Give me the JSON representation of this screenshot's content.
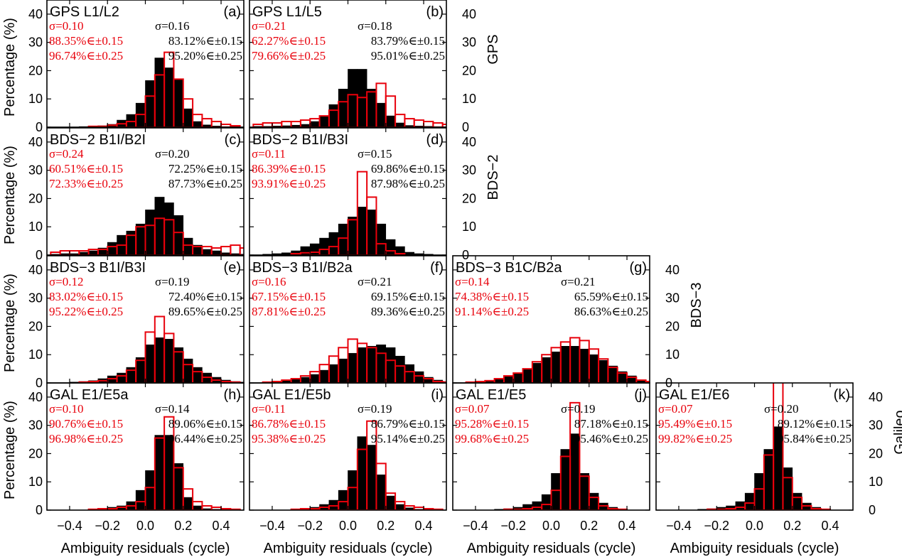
{
  "figure": {
    "x_axis_label": "Ambiguity residuals (cycle)",
    "y_axis_label": "Percentage (%)",
    "row_labels": [
      "GPS",
      "BDS−2",
      "BDS−3",
      "Galileo"
    ],
    "colors": {
      "filled_bars": "#000000",
      "outline_bars": "#e8000b",
      "frame": "#000000"
    }
  },
  "chart_data": [
    {
      "type": "bar",
      "id": "a",
      "row": 0,
      "col": 0,
      "panel_label": "(a)",
      "title": "GPS L1/L2",
      "xlim": [
        -0.52,
        0.52
      ],
      "ylim": [
        0,
        45
      ],
      "yticks": [
        0,
        10,
        20,
        30,
        40
      ],
      "xticks": [
        -0.4,
        -0.2,
        0.0,
        0.2,
        0.4
      ],
      "bin_edges_start": -0.5,
      "bin_width": 0.05,
      "series": [
        {
          "name": "black",
          "style": "filled",
          "values": [
            0,
            0,
            0,
            0.2,
            0.3,
            0.5,
            1,
            2.5,
            4.5,
            8.5,
            16.5,
            24.5,
            21,
            17,
            6.5,
            2,
            0.8,
            0.4,
            0.2,
            0,
            0
          ]
        },
        {
          "name": "red",
          "style": "outline",
          "values": [
            0,
            0,
            0,
            0,
            0.3,
            0.3,
            0.7,
            1.2,
            2,
            4.5,
            11,
            18.5,
            26.5,
            17,
            10,
            4.5,
            3,
            2,
            1,
            0.5,
            0
          ]
        }
      ],
      "stats_red": {
        "sigma": "σ=0.10",
        "p15": "88.35%∈±0.15",
        "p25": "96.74%∈±0.25"
      },
      "stats_black": {
        "sigma": "σ=0.16",
        "p15": "83.12%∈±0.15",
        "p25": "95.20%∈±0.25"
      }
    },
    {
      "type": "bar",
      "id": "b",
      "row": 0,
      "col": 1,
      "panel_label": "(b)",
      "title": "GPS L1/L5",
      "xlim": [
        -0.52,
        0.52
      ],
      "ylim": [
        0,
        45
      ],
      "yticks": [
        0,
        10,
        20,
        30,
        40
      ],
      "xticks": [
        -0.4,
        -0.2,
        0.0,
        0.2,
        0.4
      ],
      "bin_edges_start": -0.5,
      "bin_width": 0.05,
      "series": [
        {
          "name": "black",
          "style": "filled",
          "values": [
            0.3,
            0.3,
            0.4,
            0.5,
            0.7,
            1,
            2,
            4,
            8,
            13.5,
            20.5,
            20.5,
            13.5,
            8.5,
            4,
            1.5,
            0.6,
            0.4,
            0.3,
            0.2,
            0.1
          ]
        },
        {
          "name": "red",
          "style": "outline",
          "values": [
            1,
            1.5,
            1.5,
            2,
            2,
            2.5,
            3,
            4,
            6,
            9,
            11.5,
            10.5,
            12.5,
            15.5,
            11,
            4.5,
            3,
            2.5,
            2,
            1.5,
            1
          ]
        }
      ],
      "stats_red": {
        "sigma": "σ=0.21",
        "p15": "62.27%∈±0.15",
        "p25": "79.66%∈±0.25"
      },
      "stats_black": {
        "sigma": "σ=0.18",
        "p15": "83.79%∈±0.15",
        "p25": "95.01%∈±0.25"
      }
    },
    {
      "type": "bar",
      "id": "c",
      "row": 1,
      "col": 0,
      "panel_label": "(c)",
      "title": "BDS−2 B1I/B2I",
      "xlim": [
        -0.52,
        0.52
      ],
      "ylim": [
        0,
        45
      ],
      "yticks": [
        0,
        10,
        20,
        30,
        40
      ],
      "xticks": [
        -0.4,
        -0.2,
        0.0,
        0.2,
        0.4
      ],
      "bin_edges_start": -0.5,
      "bin_width": 0.05,
      "series": [
        {
          "name": "black",
          "style": "filled",
          "values": [
            0.3,
            0.5,
            0.5,
            1,
            1.5,
            2.5,
            4.5,
            7,
            8.5,
            11,
            16,
            20.5,
            18.5,
            14,
            6,
            3.5,
            2,
            1.5,
            0.8,
            0.5,
            0.3
          ]
        },
        {
          "name": "red",
          "style": "outline",
          "values": [
            1,
            1.5,
            1.5,
            1.5,
            2,
            2,
            3,
            3.5,
            7,
            10,
            10.5,
            13,
            12.5,
            8,
            3.5,
            3,
            3,
            2.5,
            3,
            3.5,
            2.5
          ]
        }
      ],
      "stats_red": {
        "sigma": "σ=0.24",
        "p15": "60.51%∈±0.15",
        "p25": "72.33%∈±0.25"
      },
      "stats_black": {
        "sigma": "σ=0.20",
        "p15": "72.25%∈±0.15",
        "p25": "87.73%∈±0.25"
      }
    },
    {
      "type": "bar",
      "id": "d",
      "row": 1,
      "col": 1,
      "panel_label": "(d)",
      "title": "BDS−2 B1I/B3I",
      "xlim": [
        -0.52,
        0.52
      ],
      "ylim": [
        0,
        45
      ],
      "yticks": [
        0,
        10,
        20,
        30,
        40
      ],
      "xticks": [
        -0.4,
        -0.2,
        0.0,
        0.2,
        0.4
      ],
      "bin_edges_start": -0.5,
      "bin_width": 0.05,
      "series": [
        {
          "name": "black",
          "style": "filled",
          "values": [
            0,
            0.3,
            0.5,
            0.8,
            1.5,
            3,
            4,
            6,
            8,
            11,
            13.5,
            17,
            16,
            11,
            5.5,
            3,
            1,
            0.5,
            0.3,
            0,
            0
          ]
        },
        {
          "name": "red",
          "style": "outline",
          "values": [
            0,
            0,
            0,
            0,
            0.5,
            0.8,
            1,
            2,
            3,
            6,
            12.5,
            29.5,
            20.5,
            4,
            1.5,
            0.5,
            0,
            0,
            0,
            0,
            0
          ]
        }
      ],
      "stats_red": {
        "sigma": "σ=0.11",
        "p15": "86.39%∈±0.15",
        "p25": "93.91%∈±0.25"
      },
      "stats_black": {
        "sigma": "σ=0.15",
        "p15": "69.86%∈±0.15",
        "p25": "87.98%∈±0.25"
      }
    },
    {
      "type": "bar",
      "id": "e",
      "row": 2,
      "col": 0,
      "panel_label": "(e)",
      "title": "BDS−3 B1I/B3I",
      "xlim": [
        -0.52,
        0.52
      ],
      "ylim": [
        0,
        45
      ],
      "yticks": [
        0,
        10,
        20,
        30,
        40
      ],
      "xticks": [
        -0.4,
        -0.2,
        0.0,
        0.2,
        0.4
      ],
      "bin_edges_start": -0.5,
      "bin_width": 0.05,
      "series": [
        {
          "name": "black",
          "style": "filled",
          "values": [
            0,
            0,
            0.3,
            0.5,
            0.8,
            1.5,
            2.5,
            3.5,
            5.5,
            9,
            13.5,
            16,
            15.5,
            12.5,
            8.5,
            5.5,
            3.5,
            2,
            1,
            0.5,
            0.3
          ]
        },
        {
          "name": "red",
          "style": "outline",
          "values": [
            0,
            0,
            0,
            0.3,
            0.5,
            0.8,
            1.5,
            2.5,
            4.5,
            8,
            18,
            23.5,
            17.5,
            11,
            6.5,
            4,
            2,
            1,
            0.5,
            0.3,
            0
          ]
        }
      ],
      "stats_red": {
        "sigma": "σ=0.12",
        "p15": "83.02%∈±0.15",
        "p25": "95.22%∈±0.25"
      },
      "stats_black": {
        "sigma": "σ=0.19",
        "p15": "72.40%∈±0.15",
        "p25": "89.65%∈±0.25"
      }
    },
    {
      "type": "bar",
      "id": "f",
      "row": 2,
      "col": 1,
      "panel_label": "(f)",
      "title": "BDS−3 B1I/B2a",
      "xlim": [
        -0.52,
        0.52
      ],
      "ylim": [
        0,
        45
      ],
      "yticks": [
        0,
        10,
        20,
        30,
        40
      ],
      "xticks": [
        -0.4,
        -0.2,
        0.0,
        0.2,
        0.4
      ],
      "bin_edges_start": -0.5,
      "bin_width": 0.05,
      "series": [
        {
          "name": "black",
          "style": "filled",
          "values": [
            0,
            0.3,
            0.5,
            0.8,
            1.5,
            2,
            3,
            4.5,
            6.5,
            8.5,
            10.5,
            12.5,
            13,
            13.5,
            12.5,
            9.5,
            6.5,
            4,
            2,
            1,
            0.5
          ]
        },
        {
          "name": "red",
          "style": "outline",
          "values": [
            0,
            0.3,
            0.5,
            1,
            1.5,
            2.5,
            4,
            6.5,
            9.5,
            12.5,
            15.5,
            14,
            12.5,
            10.5,
            8,
            6,
            4,
            2.5,
            1.5,
            0.5,
            0.3
          ]
        }
      ],
      "stats_red": {
        "sigma": "σ=0.16",
        "p15": "67.15%∈±0.15",
        "p25": "87.81%∈±0.25"
      },
      "stats_black": {
        "sigma": "σ=0.21",
        "p15": "69.15%∈±0.15",
        "p25": "89.36%∈±0.25"
      }
    },
    {
      "type": "bar",
      "id": "g",
      "row": 2,
      "col": 2,
      "panel_label": "(g)",
      "title": "BDS−3 B1C/B2a",
      "xlim": [
        -0.52,
        0.52
      ],
      "ylim": [
        0,
        45
      ],
      "yticks": [
        0,
        10,
        20,
        30,
        40
      ],
      "xticks": [
        -0.4,
        -0.2,
        0.0,
        0.2,
        0.4
      ],
      "bin_edges_start": -0.5,
      "bin_width": 0.05,
      "series": [
        {
          "name": "black",
          "style": "filled",
          "values": [
            0,
            0.3,
            0.5,
            0.8,
            1.5,
            2.5,
            3.5,
            5,
            7,
            9,
            11,
            13,
            13,
            12,
            10,
            8,
            6,
            4,
            2.5,
            1,
            0.5
          ]
        },
        {
          "name": "red",
          "style": "outline",
          "values": [
            0,
            0.3,
            0.5,
            0.8,
            1.5,
            2.5,
            3.5,
            5,
            7.5,
            10,
            12.5,
            14.5,
            16,
            15,
            12,
            8.5,
            5.5,
            3.5,
            2,
            1,
            0.5
          ]
        }
      ],
      "stats_red": {
        "sigma": "σ=0.14",
        "p15": "74.38%∈±0.15",
        "p25": "91.14%∈±0.25"
      },
      "stats_black": {
        "sigma": "σ=0.21",
        "p15": "65.59%∈±0.15",
        "p25": "86.63%∈±0.25"
      }
    },
    {
      "type": "bar",
      "id": "h",
      "row": 3,
      "col": 0,
      "panel_label": "(h)",
      "title": "GAL E1/E5a",
      "xlim": [
        -0.52,
        0.52
      ],
      "ylim": [
        0,
        45
      ],
      "yticks": [
        0,
        10,
        20,
        30,
        40
      ],
      "xticks": [
        -0.4,
        -0.2,
        0.0,
        0.2,
        0.4
      ],
      "bin_edges_start": -0.5,
      "bin_width": 0.05,
      "series": [
        {
          "name": "black",
          "style": "filled",
          "values": [
            0,
            0,
            0,
            0,
            0.3,
            0.5,
            1,
            1.5,
            3,
            7,
            14,
            26.5,
            26.5,
            16.5,
            4.5,
            1.5,
            0.5,
            0.3,
            0,
            0,
            0
          ]
        },
        {
          "name": "red",
          "style": "outline",
          "values": [
            0,
            0,
            0,
            0,
            0.3,
            0.5,
            0.5,
            1,
            1.5,
            3,
            8,
            25.5,
            33,
            15,
            7.5,
            3,
            1.5,
            1,
            0.5,
            0.3,
            0
          ]
        }
      ],
      "stats_red": {
        "sigma": "σ=0.10",
        "p15": "90.76%∈±0.15",
        "p25": "96.98%∈±0.25"
      },
      "stats_black": {
        "sigma": "σ=0.14",
        "p15": "89.06%∈±0.15",
        "p25": "96.44%∈±0.25"
      }
    },
    {
      "type": "bar",
      "id": "i",
      "row": 3,
      "col": 1,
      "panel_label": "(i)",
      "title": "GAL E1/E5b",
      "xlim": [
        -0.52,
        0.52
      ],
      "ylim": [
        0,
        45
      ],
      "yticks": [
        0,
        10,
        20,
        30,
        40
      ],
      "xticks": [
        -0.4,
        -0.2,
        0.0,
        0.2,
        0.4
      ],
      "bin_edges_start": -0.5,
      "bin_width": 0.05,
      "series": [
        {
          "name": "black",
          "style": "filled",
          "values": [
            0,
            0,
            0,
            0,
            0.3,
            0.5,
            1,
            2,
            3.5,
            7,
            14,
            26,
            23,
            12.5,
            5,
            2,
            0.8,
            0.3,
            0,
            0,
            0
          ]
        },
        {
          "name": "red",
          "style": "outline",
          "values": [
            0,
            0,
            0,
            0,
            0.3,
            0.5,
            0.5,
            1,
            1.5,
            3,
            8,
            21.5,
            31.5,
            16.5,
            6,
            3,
            1.5,
            1,
            0.5,
            0.3,
            0
          ]
        }
      ],
      "stats_red": {
        "sigma": "σ=0.11",
        "p15": "86.78%∈±0.15",
        "p25": "95.38%∈±0.25"
      },
      "stats_black": {
        "sigma": "σ=0.19",
        "p15": "86.79%∈±0.15",
        "p25": "95.14%∈±0.25"
      }
    },
    {
      "type": "bar",
      "id": "j",
      "row": 3,
      "col": 2,
      "panel_label": "(j)",
      "title": "GAL E1/E5",
      "xlim": [
        -0.52,
        0.52
      ],
      "ylim": [
        0,
        45
      ],
      "yticks": [
        0,
        10,
        20,
        30,
        40
      ],
      "xticks": [
        -0.4,
        -0.2,
        0.0,
        0.2,
        0.4
      ],
      "bin_edges_start": -0.5,
      "bin_width": 0.05,
      "series": [
        {
          "name": "black",
          "style": "filled",
          "values": [
            0,
            0,
            0,
            0,
            0.3,
            0.5,
            1,
            2,
            3,
            5.5,
            13,
            21.5,
            27,
            13,
            6,
            2.5,
            1,
            0.3,
            0,
            0,
            0
          ]
        },
        {
          "name": "red",
          "style": "outline",
          "values": [
            0,
            0,
            0,
            0,
            0,
            0.3,
            0.3,
            0.5,
            1,
            2,
            7,
            19,
            38,
            12,
            4.5,
            1.5,
            0.5,
            0.3,
            0,
            0,
            0
          ]
        }
      ],
      "stats_red": {
        "sigma": "σ=0.07",
        "p15": "95.28%∈±0.15",
        "p25": "99.68%∈±0.25"
      },
      "stats_black": {
        "sigma": "σ=0.19",
        "p15": "87.18%∈±0.15",
        "p25": "95.46%∈±0.25"
      }
    },
    {
      "type": "bar",
      "id": "k",
      "row": 3,
      "col": 3,
      "panel_label": "(k)",
      "title": "GAL E1/E6",
      "xlim": [
        -0.52,
        0.52
      ],
      "ylim": [
        0,
        45
      ],
      "yticks": [
        0,
        10,
        20,
        30,
        40
      ],
      "xticks": [
        -0.4,
        -0.2,
        0.0,
        0.2,
        0.4
      ],
      "bin_edges_start": -0.5,
      "bin_width": 0.05,
      "series": [
        {
          "name": "black",
          "style": "filled",
          "values": [
            0,
            0,
            0,
            0,
            0.3,
            0.5,
            1,
            1.5,
            3,
            6,
            13,
            21.5,
            29.5,
            15,
            6,
            2.5,
            1,
            0.3,
            0,
            0,
            0
          ]
        },
        {
          "name": "red",
          "style": "outline",
          "values": [
            0,
            0,
            0,
            0,
            0,
            0.3,
            0.3,
            0.5,
            1,
            2.5,
            7.5,
            19.5,
            45.5,
            11.5,
            4.5,
            1.5,
            0.5,
            0.3,
            0,
            0,
            0
          ]
        }
      ],
      "stats_red": {
        "sigma": "σ=0.07",
        "p15": "95.49%∈±0.15",
        "p25": "99.82%∈±0.25"
      },
      "stats_black": {
        "sigma": "σ=0.20",
        "p15": "89.12%∈±0.15",
        "p25": "95.84%∈±0.25"
      }
    }
  ]
}
